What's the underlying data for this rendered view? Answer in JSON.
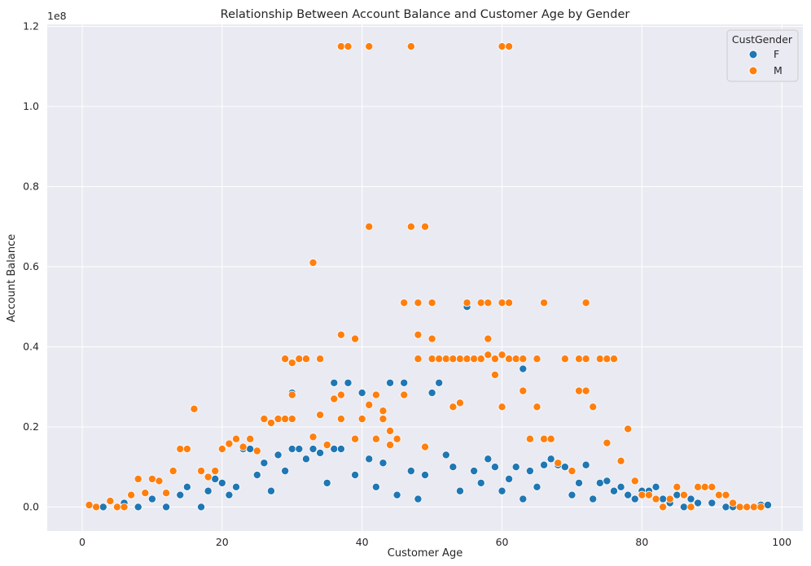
{
  "chart_data": {
    "type": "scatter",
    "title": "Relationship Between Account Balance and Customer Age by Gender",
    "xlabel": "Customer Age",
    "ylabel": "Account Balance",
    "y_offset_text": "1e8",
    "xlim": [
      -5,
      103
    ],
    "ylim": [
      -0.06,
      1.205
    ],
    "y_scale_factor": 100000000,
    "x_ticks": [
      0,
      20,
      40,
      60,
      80,
      100
    ],
    "y_ticks": [
      0.0,
      0.2,
      0.4,
      0.6,
      0.8,
      1.0,
      1.2
    ],
    "x_tick_labels": [
      "0",
      "20",
      "40",
      "60",
      "80",
      "100"
    ],
    "y_tick_labels": [
      "0.0",
      "0.2",
      "0.4",
      "0.6",
      "0.8",
      "1.0",
      "1.2"
    ],
    "grid": true,
    "legend": {
      "title": "CustGender",
      "placement": "top-right"
    },
    "series": [
      {
        "name": "F",
        "color": "#1f77b4",
        "points": [
          [
            3,
            0.0
          ],
          [
            6,
            0.01
          ],
          [
            8,
            0.0
          ],
          [
            10,
            0.02
          ],
          [
            12,
            0.0
          ],
          [
            14,
            0.03
          ],
          [
            15,
            0.05
          ],
          [
            17,
            0.0
          ],
          [
            18,
            0.04
          ],
          [
            19,
            0.07
          ],
          [
            20,
            0.06
          ],
          [
            21,
            0.03
          ],
          [
            22,
            0.05
          ],
          [
            23,
            0.145
          ],
          [
            24,
            0.145
          ],
          [
            25,
            0.08
          ],
          [
            26,
            0.11
          ],
          [
            27,
            0.04
          ],
          [
            28,
            0.13
          ],
          [
            29,
            0.09
          ],
          [
            30,
            0.145
          ],
          [
            30,
            0.285
          ],
          [
            31,
            0.145
          ],
          [
            32,
            0.12
          ],
          [
            33,
            0.145
          ],
          [
            34,
            0.135
          ],
          [
            35,
            0.06
          ],
          [
            36,
            0.31
          ],
          [
            36,
            0.145
          ],
          [
            37,
            0.145
          ],
          [
            38,
            0.31
          ],
          [
            39,
            0.08
          ],
          [
            40,
            0.285
          ],
          [
            41,
            0.12
          ],
          [
            42,
            0.05
          ],
          [
            43,
            0.11
          ],
          [
            44,
            0.31
          ],
          [
            45,
            0.03
          ],
          [
            46,
            0.31
          ],
          [
            47,
            0.09
          ],
          [
            48,
            0.02
          ],
          [
            49,
            0.08
          ],
          [
            50,
            0.285
          ],
          [
            51,
            0.31
          ],
          [
            52,
            0.13
          ],
          [
            53,
            0.1
          ],
          [
            54,
            0.04
          ],
          [
            55,
            0.5
          ],
          [
            56,
            0.09
          ],
          [
            57,
            0.06
          ],
          [
            58,
            0.12
          ],
          [
            59,
            0.1
          ],
          [
            60,
            0.04
          ],
          [
            61,
            0.07
          ],
          [
            62,
            0.1
          ],
          [
            63,
            0.345
          ],
          [
            63,
            0.02
          ],
          [
            64,
            0.09
          ],
          [
            65,
            0.05
          ],
          [
            66,
            0.105
          ],
          [
            67,
            0.12
          ],
          [
            68,
            0.105
          ],
          [
            69,
            0.1
          ],
          [
            70,
            0.03
          ],
          [
            71,
            0.06
          ],
          [
            72,
            0.105
          ],
          [
            73,
            0.02
          ],
          [
            74,
            0.06
          ],
          [
            75,
            0.065
          ],
          [
            76,
            0.04
          ],
          [
            77,
            0.05
          ],
          [
            78,
            0.03
          ],
          [
            79,
            0.02
          ],
          [
            80,
            0.04
          ],
          [
            81,
            0.04
          ],
          [
            82,
            0.05
          ],
          [
            83,
            0.02
          ],
          [
            84,
            0.01
          ],
          [
            85,
            0.03
          ],
          [
            86,
            0.0
          ],
          [
            87,
            0.02
          ],
          [
            88,
            0.01
          ],
          [
            90,
            0.01
          ],
          [
            92,
            0.0
          ],
          [
            93,
            0.0
          ],
          [
            95,
            0.0
          ],
          [
            97,
            0.005
          ],
          [
            98,
            0.005
          ]
        ]
      },
      {
        "name": "M",
        "color": "#ff7f0e",
        "points": [
          [
            1,
            0.005
          ],
          [
            2,
            0.0
          ],
          [
            4,
            0.015
          ],
          [
            5,
            0.0
          ],
          [
            6,
            0.0
          ],
          [
            7,
            0.03
          ],
          [
            8,
            0.07
          ],
          [
            9,
            0.035
          ],
          [
            10,
            0.07
          ],
          [
            11,
            0.065
          ],
          [
            12,
            0.035
          ],
          [
            13,
            0.09
          ],
          [
            14,
            0.145
          ],
          [
            15,
            0.145
          ],
          [
            16,
            0.245
          ],
          [
            17,
            0.09
          ],
          [
            18,
            0.075
          ],
          [
            19,
            0.09
          ],
          [
            20,
            0.145
          ],
          [
            21,
            0.158
          ],
          [
            22,
            0.17
          ],
          [
            23,
            0.15
          ],
          [
            24,
            0.17
          ],
          [
            25,
            0.14
          ],
          [
            26,
            0.22
          ],
          [
            27,
            0.21
          ],
          [
            28,
            0.22
          ],
          [
            29,
            0.22
          ],
          [
            29,
            0.37
          ],
          [
            30,
            0.36
          ],
          [
            30,
            0.28
          ],
          [
            30,
            0.22
          ],
          [
            31,
            0.37
          ],
          [
            32,
            0.37
          ],
          [
            33,
            0.61
          ],
          [
            33,
            0.175
          ],
          [
            34,
            0.37
          ],
          [
            34,
            0.23
          ],
          [
            35,
            0.155
          ],
          [
            36,
            0.27
          ],
          [
            37,
            1.15
          ],
          [
            37,
            0.43
          ],
          [
            37,
            0.28
          ],
          [
            37,
            0.22
          ],
          [
            38,
            1.15
          ],
          [
            39,
            0.42
          ],
          [
            39,
            0.17
          ],
          [
            40,
            0.22
          ],
          [
            41,
            1.15
          ],
          [
            41,
            0.7
          ],
          [
            41,
            0.255
          ],
          [
            42,
            0.28
          ],
          [
            42,
            0.17
          ],
          [
            43,
            0.24
          ],
          [
            43,
            0.22
          ],
          [
            44,
            0.19
          ],
          [
            44,
            0.155
          ],
          [
            45,
            0.17
          ],
          [
            46,
            0.51
          ],
          [
            46,
            0.28
          ],
          [
            47,
            1.15
          ],
          [
            47,
            0.7
          ],
          [
            48,
            0.51
          ],
          [
            48,
            0.43
          ],
          [
            48,
            0.37
          ],
          [
            49,
            0.7
          ],
          [
            49,
            0.15
          ],
          [
            50,
            0.51
          ],
          [
            50,
            0.42
          ],
          [
            50,
            0.37
          ],
          [
            51,
            0.37
          ],
          [
            52,
            0.37
          ],
          [
            53,
            0.37
          ],
          [
            53,
            0.25
          ],
          [
            54,
            0.37
          ],
          [
            54,
            0.26
          ],
          [
            55,
            0.51
          ],
          [
            55,
            0.37
          ],
          [
            56,
            0.37
          ],
          [
            57,
            0.51
          ],
          [
            57,
            0.37
          ],
          [
            58,
            0.51
          ],
          [
            58,
            0.42
          ],
          [
            58,
            0.38
          ],
          [
            59,
            0.37
          ],
          [
            59,
            0.33
          ],
          [
            60,
            1.15
          ],
          [
            60,
            0.51
          ],
          [
            60,
            0.38
          ],
          [
            60,
            0.25
          ],
          [
            61,
            1.15
          ],
          [
            61,
            0.51
          ],
          [
            61,
            0.37
          ],
          [
            62,
            0.37
          ],
          [
            63,
            0.37
          ],
          [
            63,
            0.29
          ],
          [
            64,
            0.17
          ],
          [
            65,
            0.37
          ],
          [
            65,
            0.25
          ],
          [
            66,
            0.51
          ],
          [
            66,
            0.17
          ],
          [
            67,
            0.17
          ],
          [
            68,
            0.11
          ],
          [
            69,
            0.37
          ],
          [
            70,
            0.09
          ],
          [
            71,
            0.37
          ],
          [
            71,
            0.29
          ],
          [
            72,
            0.51
          ],
          [
            72,
            0.37
          ],
          [
            72,
            0.29
          ],
          [
            73,
            0.25
          ],
          [
            74,
            0.37
          ],
          [
            75,
            0.37
          ],
          [
            75,
            0.16
          ],
          [
            76,
            0.37
          ],
          [
            77,
            0.115
          ],
          [
            78,
            0.195
          ],
          [
            79,
            0.065
          ],
          [
            80,
            0.03
          ],
          [
            81,
            0.03
          ],
          [
            82,
            0.02
          ],
          [
            83,
            0.0
          ],
          [
            84,
            0.02
          ],
          [
            85,
            0.05
          ],
          [
            86,
            0.03
          ],
          [
            87,
            0.0
          ],
          [
            88,
            0.05
          ],
          [
            89,
            0.05
          ],
          [
            90,
            0.05
          ],
          [
            91,
            0.03
          ],
          [
            92,
            0.03
          ],
          [
            93,
            0.01
          ],
          [
            94,
            0.0
          ],
          [
            95,
            0.0
          ],
          [
            96,
            0.0
          ],
          [
            97,
            0.0
          ]
        ]
      }
    ]
  }
}
